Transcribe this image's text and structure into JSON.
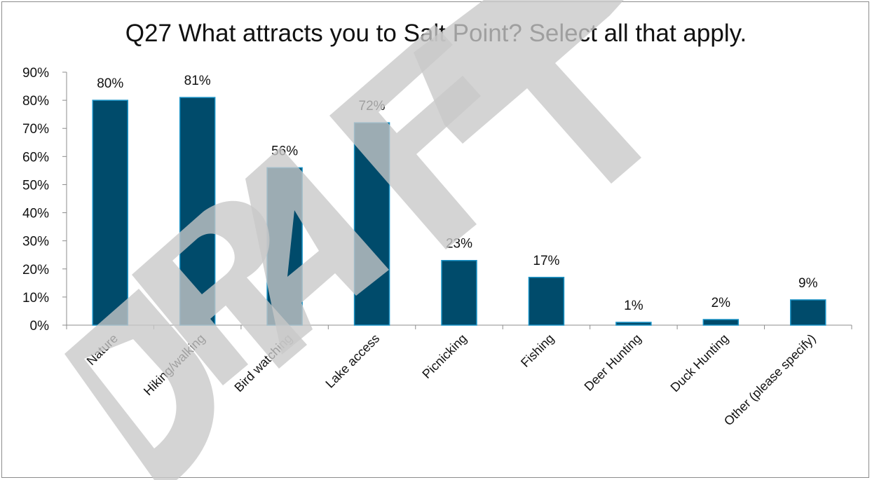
{
  "chart_data": {
    "type": "bar",
    "title": "Q27 What attracts you to Salt Point? Select all that apply.",
    "categories": [
      "Nature",
      "Hiking/walking",
      "Bird watching",
      "Lake access",
      "Picnicking",
      "Fishing",
      "Deer Hunting",
      "Duck Hunting",
      "Other (please specify)"
    ],
    "values": [
      80,
      81,
      56,
      72,
      23,
      17,
      1,
      2,
      9
    ],
    "data_labels": [
      "80%",
      "81%",
      "56%",
      "72%",
      "23%",
      "17%",
      "1%",
      "2%",
      "9%"
    ],
    "y_ticks": [
      "0%",
      "10%",
      "20%",
      "30%",
      "40%",
      "50%",
      "60%",
      "70%",
      "80%",
      "90%"
    ],
    "ylim": [
      0,
      90
    ],
    "xlabel": "",
    "ylabel": "",
    "grid": false,
    "legend": "none",
    "bar_color": "#004b6b",
    "bar_edge_color": "#1a93c6"
  },
  "watermark": {
    "text": "DRAFT",
    "color": "#c8c8c8"
  }
}
